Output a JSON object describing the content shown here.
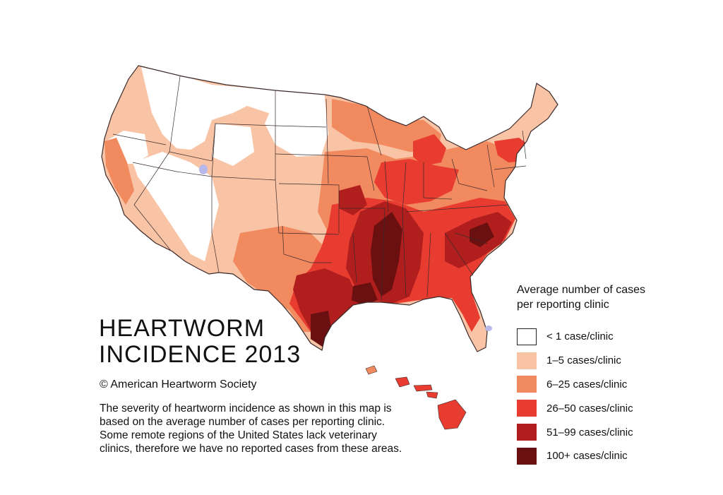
{
  "title": {
    "line1": "HEARTWORM",
    "line2": "INCIDENCE 2013"
  },
  "copyright": "© American Heartworm Society",
  "description": "The severity of heartworm incidence as shown in this map is based on the average number of cases per reporting clinic. Some remote regions of the United States lack veterinary clinics, therefore we have no reported cases from these areas.",
  "legend": {
    "title_line1": "Average number of cases",
    "title_line2": "per reporting clinic",
    "items": [
      {
        "label": "< 1 case/clinic",
        "color": "#ffffff"
      },
      {
        "label": "1–5 cases/clinic",
        "color": "#f9c4a5"
      },
      {
        "label": "6–25 cases/clinic",
        "color": "#f28a60"
      },
      {
        "label": "26–50 cases/clinic",
        "color": "#e83c30"
      },
      {
        "label": "51–99 cases/clinic",
        "color": "#b01f1e"
      },
      {
        "label": "100+ cases/clinic",
        "color": "#6a1010"
      }
    ]
  },
  "colors": {
    "water": "#b8b8ea",
    "border": "#3a2a2a"
  }
}
